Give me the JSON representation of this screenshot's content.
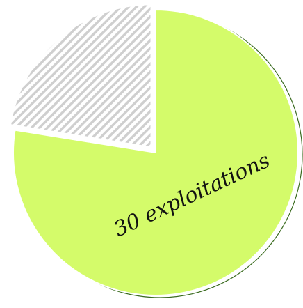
{
  "chart_data": {
    "type": "pie",
    "title": "",
    "slices": [
      {
        "label": "30 exploitations",
        "value": 30,
        "color": "#d4fb6a",
        "pattern": "none"
      },
      {
        "label": "",
        "value": 8.7,
        "color": "#d9d9d9",
        "pattern": "diagonal-hatch"
      }
    ],
    "start_angle_deg": 0,
    "direction": "clockwise",
    "exploded_slice_index": 1,
    "outline_color": "#3a6b1f",
    "hatch_color": "#cfcfcf",
    "legend": "none"
  }
}
